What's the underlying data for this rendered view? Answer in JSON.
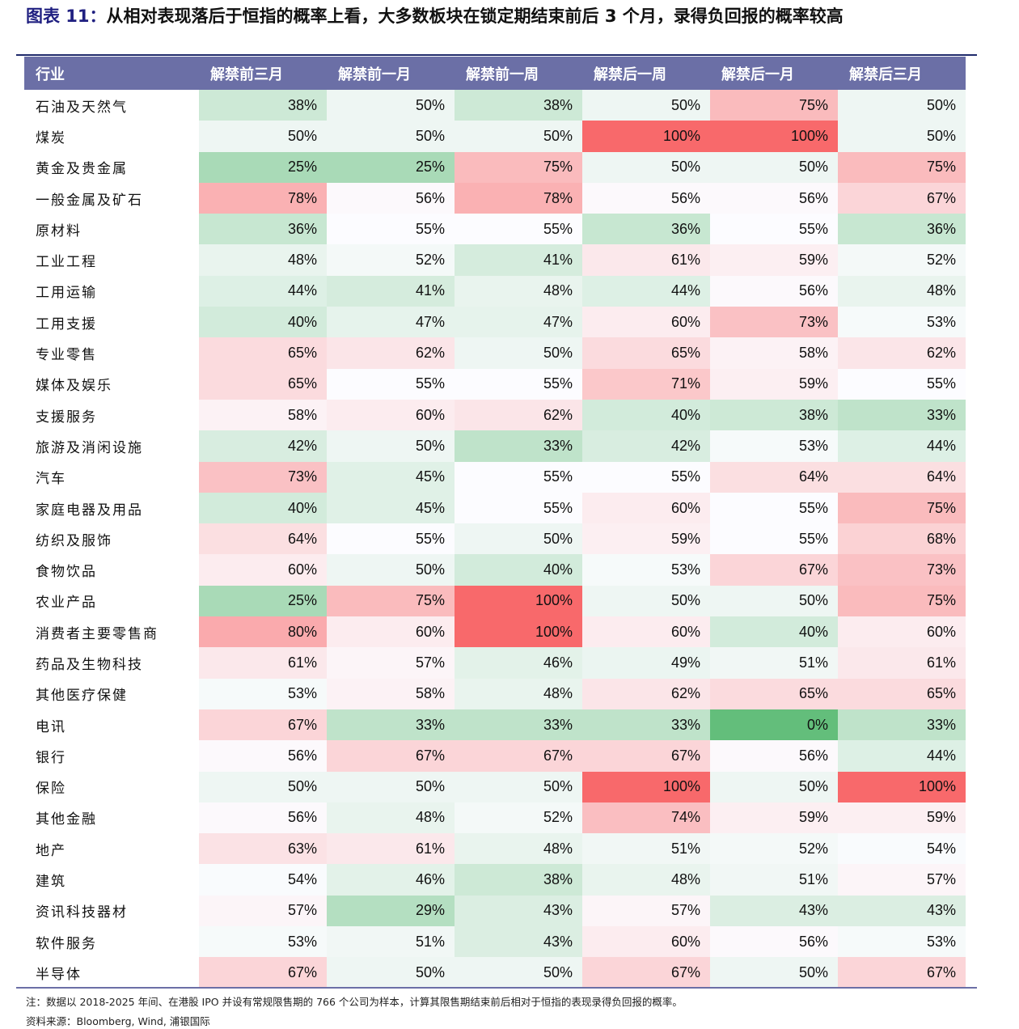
{
  "title": {
    "label": "图表 11：",
    "text": "从相对表现落后于恒指的概率上看，大多数板块在锁定期结束前后 3 个月，录得负回报的概率较高"
  },
  "columns": [
    "行业",
    "解禁前三月",
    "解禁前一月",
    "解禁前一周",
    "解禁后一周",
    "解禁后一月",
    "解禁后三月"
  ],
  "rows": [
    [
      "石油及天然气",
      38,
      50,
      38,
      50,
      75,
      50
    ],
    [
      "煤炭",
      50,
      50,
      50,
      100,
      100,
      50
    ],
    [
      "黄金及贵金属",
      25,
      25,
      75,
      50,
      50,
      75
    ],
    [
      "一般金属及矿石",
      78,
      56,
      78,
      56,
      56,
      67
    ],
    [
      "原材料",
      36,
      55,
      55,
      36,
      55,
      36
    ],
    [
      "工业工程",
      48,
      52,
      41,
      61,
      59,
      52
    ],
    [
      "工用运输",
      44,
      41,
      48,
      44,
      56,
      48
    ],
    [
      "工用支援",
      40,
      47,
      47,
      60,
      73,
      53
    ],
    [
      "专业零售",
      65,
      62,
      50,
      65,
      58,
      62
    ],
    [
      "媒体及娱乐",
      65,
      55,
      55,
      71,
      59,
      55
    ],
    [
      "支援服务",
      58,
      60,
      62,
      40,
      38,
      33
    ],
    [
      "旅游及消闲设施",
      42,
      50,
      33,
      42,
      53,
      44
    ],
    [
      "汽车",
      73,
      45,
      55,
      55,
      64,
      64
    ],
    [
      "家庭电器及用品",
      40,
      45,
      55,
      60,
      55,
      75
    ],
    [
      "纺织及服饰",
      64,
      55,
      50,
      59,
      55,
      68
    ],
    [
      "食物饮品",
      60,
      50,
      40,
      53,
      67,
      73
    ],
    [
      "农业产品",
      25,
      75,
      100,
      50,
      50,
      75
    ],
    [
      "消费者主要零售商",
      80,
      60,
      100,
      60,
      40,
      60
    ],
    [
      "药品及生物科技",
      61,
      57,
      46,
      49,
      51,
      61
    ],
    [
      "其他医疗保健",
      53,
      58,
      48,
      62,
      65,
      65
    ],
    [
      "电讯",
      67,
      33,
      33,
      33,
      0,
      33
    ],
    [
      "银行",
      56,
      67,
      67,
      67,
      56,
      44
    ],
    [
      "保险",
      50,
      50,
      50,
      100,
      50,
      100
    ],
    [
      "其他金融",
      56,
      48,
      52,
      74,
      59,
      59
    ],
    [
      "地产",
      63,
      61,
      48,
      51,
      52,
      54
    ],
    [
      "建筑",
      54,
      46,
      38,
      48,
      51,
      57
    ],
    [
      "资讯科技器材",
      57,
      29,
      43,
      57,
      43,
      43
    ],
    [
      "软件服务",
      53,
      51,
      43,
      60,
      56,
      53
    ],
    [
      "半导体",
      67,
      50,
      50,
      67,
      50,
      67
    ]
  ],
  "colors": {
    "low": "#63be7b",
    "mid": "#fcfcff",
    "high": "#f8696b",
    "header": "#6b6fa6"
  },
  "note": "注：数据以 2018-2025 年间、在港股 IPO 并设有常规限售期的 766 个公司为样本，计算其限售期结束前后相对于恒指的表现录得负回报的概率。",
  "source": "资料来源：Bloomberg, Wind, 浦银国际"
}
